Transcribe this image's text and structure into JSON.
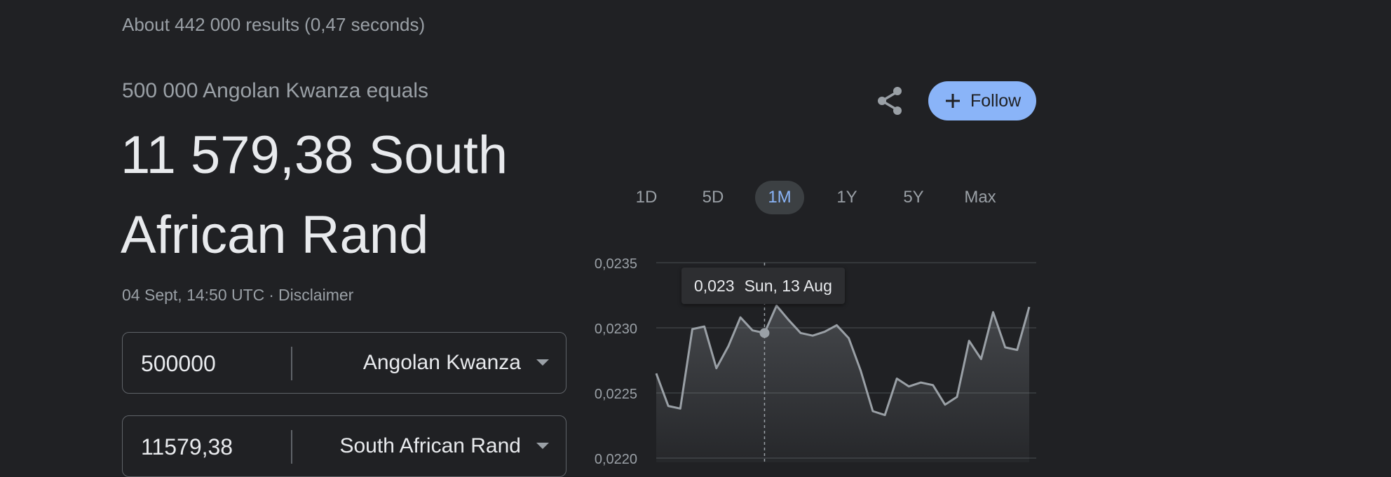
{
  "search": {
    "result_stats": "About 442 000 results (0,47 seconds)"
  },
  "converter": {
    "equals_text": "500 000 Angolan Kwanza equals",
    "result_line1": "11 579,38 South",
    "result_line2": "African Rand",
    "timestamp": "04 Sept, 14:50 UTC",
    "separator": "·",
    "disclaimer": "Disclaimer",
    "from": {
      "amount": "500000",
      "currency": "Angolan Kwanza"
    },
    "to": {
      "amount": "11579,38",
      "currency": "South African Rand"
    }
  },
  "actions": {
    "share_icon": "share-icon",
    "follow_icon": "plus-icon",
    "follow_label": "Follow",
    "accent_color": "#8ab4f8"
  },
  "ranges": {
    "items": [
      "1D",
      "5D",
      "1M",
      "1Y",
      "5Y",
      "Max"
    ],
    "active": "1M"
  },
  "tooltip": {
    "value": "0,023",
    "date": "Sun, 13 Aug"
  },
  "chart_data": {
    "type": "area",
    "y_ticks": [
      "0,0235",
      "0,0230",
      "0,0225",
      "0,0220"
    ],
    "ylim": [
      0.022,
      0.0235
    ],
    "grid": true,
    "highlight_index": 9,
    "series": [
      {
        "values": [
          0.02265,
          0.0224,
          0.02238,
          0.02299,
          0.02301,
          0.02269,
          0.02286,
          0.02308,
          0.02298,
          0.02296,
          0.02317,
          0.02306,
          0.02296,
          0.02294,
          0.02297,
          0.02302,
          0.02292,
          0.02267,
          0.02236,
          0.02233,
          0.02261,
          0.02255,
          0.02258,
          0.02256,
          0.02241,
          0.02247,
          0.0229,
          0.02276,
          0.02312,
          0.02285,
          0.02283,
          0.02316
        ]
      }
    ]
  }
}
